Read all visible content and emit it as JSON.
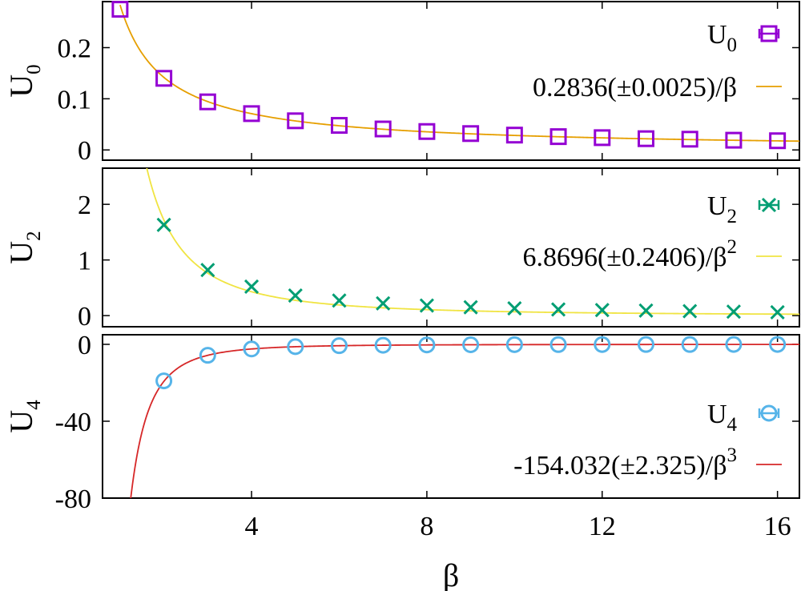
{
  "chart_data": [
    {
      "type": "scatter",
      "ylabel": "U",
      "ylabel_sub": "0",
      "xlim": [
        0.6,
        16.5
      ],
      "ylim": [
        -0.02,
        0.29
      ],
      "yticks": [
        "0",
        "0.1",
        "0.2"
      ],
      "ytick_values": [
        0,
        0.1,
        0.2
      ],
      "grid": false,
      "legend_position": "top-right",
      "series": [
        {
          "kind": "data",
          "name": "U",
          "name_sub": "0",
          "marker": "square",
          "color": "#9400d3",
          "x": [
            1,
            2,
            3,
            4,
            5,
            6,
            7,
            8,
            9,
            10,
            11,
            12,
            13,
            14,
            15,
            16
          ],
          "y": [
            0.275,
            0.14,
            0.094,
            0.071,
            0.057,
            0.048,
            0.041,
            0.036,
            0.032,
            0.029,
            0.026,
            0.024,
            0.022,
            0.021,
            0.019,
            0.018
          ]
        },
        {
          "kind": "fit",
          "name": "0.2836(±0.0025)/β",
          "name_sup": "",
          "coef": 0.2836,
          "power": 1,
          "color": "#e69f00"
        }
      ]
    },
    {
      "type": "scatter",
      "ylabel": "U",
      "ylabel_sub": "2",
      "xlim": [
        0.6,
        16.5
      ],
      "ylim": [
        -0.2,
        2.65
      ],
      "yticks": [
        "0",
        "1",
        "2"
      ],
      "ytick_values": [
        0,
        1,
        2
      ],
      "grid": false,
      "legend_position": "top-right",
      "series": [
        {
          "kind": "data",
          "name": "U",
          "name_sub": "2",
          "marker": "cross",
          "color": "#009e73",
          "x": [
            2,
            3,
            4,
            5,
            6,
            7,
            8,
            9,
            10,
            11,
            12,
            13,
            14,
            15,
            16
          ],
          "y": [
            1.63,
            0.82,
            0.52,
            0.36,
            0.27,
            0.22,
            0.18,
            0.15,
            0.13,
            0.11,
            0.1,
            0.09,
            0.08,
            0.07,
            0.06
          ]
        },
        {
          "kind": "fit",
          "name": "6.8696(±0.2406)/β",
          "name_sup": "2",
          "coef": 6.8696,
          "power": 2,
          "color": "#f0e442"
        }
      ]
    },
    {
      "type": "scatter",
      "ylabel": "U",
      "ylabel_sub": "4",
      "xlabel": "β",
      "xlim": [
        0.6,
        16.5
      ],
      "ylim": [
        -80,
        5
      ],
      "yticks": [
        "-80",
        "-40",
        "0"
      ],
      "ytick_values": [
        -80,
        -40,
        0
      ],
      "xticks": [
        "4",
        "8",
        "12",
        "16"
      ],
      "xtick_values": [
        4,
        8,
        12,
        16
      ],
      "grid": false,
      "legend_position": "bottom-right",
      "series": [
        {
          "kind": "data",
          "name": "U",
          "name_sub": "4",
          "marker": "circle",
          "color": "#56b4e9",
          "x": [
            2,
            3,
            4,
            5,
            6,
            7,
            8,
            9,
            10,
            11,
            12,
            13,
            14,
            15,
            16
          ],
          "y": [
            -19,
            -5.7,
            -2.4,
            -1.2,
            -0.7,
            -0.45,
            -0.3,
            -0.21,
            -0.15,
            -0.12,
            -0.09,
            -0.07,
            -0.06,
            -0.05,
            -0.04
          ]
        },
        {
          "kind": "fit",
          "name": "-154.032(±2.325)/β",
          "name_sup": "3",
          "coef": -154.032,
          "power": 3,
          "color": "#d62728"
        }
      ]
    }
  ]
}
